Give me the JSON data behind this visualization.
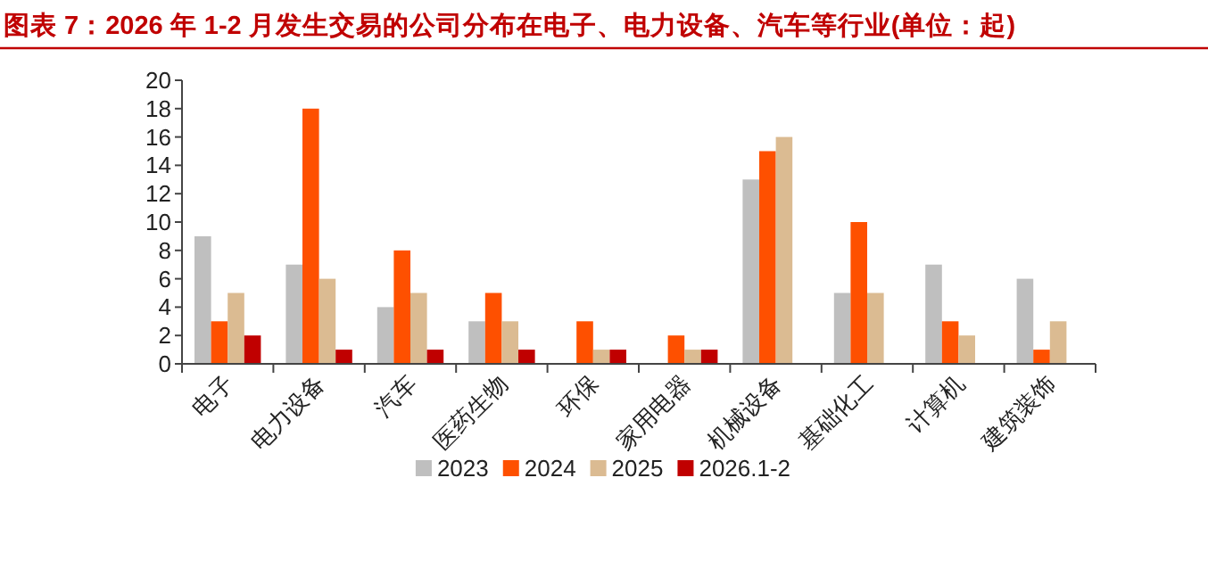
{
  "chart_data": {
    "type": "bar",
    "title": "图表 7：2026 年 1-2 月发生交易的公司分布在电子、电力设备、汽车等行业(单位：起)",
    "categories": [
      "电子",
      "电力设备",
      "汽车",
      "医药生物",
      "环保",
      "家用电器",
      "机械设备",
      "基础化工",
      "计算机",
      "建筑装饰"
    ],
    "series": [
      {
        "name": "2023",
        "color": "#bfbfbf",
        "values": [
          9,
          7,
          4,
          3,
          0,
          0,
          13,
          5,
          7,
          6
        ]
      },
      {
        "name": "2024",
        "color": "#fe5000",
        "values": [
          3,
          18,
          8,
          5,
          3,
          2,
          15,
          10,
          3,
          1
        ]
      },
      {
        "name": "2025",
        "color": "#dbbb92",
        "values": [
          5,
          6,
          5,
          3,
          1,
          1,
          16,
          5,
          2,
          3
        ]
      },
      {
        "name": "2026.1-2",
        "color": "#c00000",
        "values": [
          2,
          1,
          1,
          1,
          1,
          1,
          0,
          0,
          0,
          0
        ]
      }
    ],
    "ylim": [
      0,
      20
    ],
    "yticks": [
      0,
      2,
      4,
      6,
      8,
      10,
      12,
      14,
      16,
      18,
      20
    ],
    "grid": false,
    "legend": "bottom"
  }
}
